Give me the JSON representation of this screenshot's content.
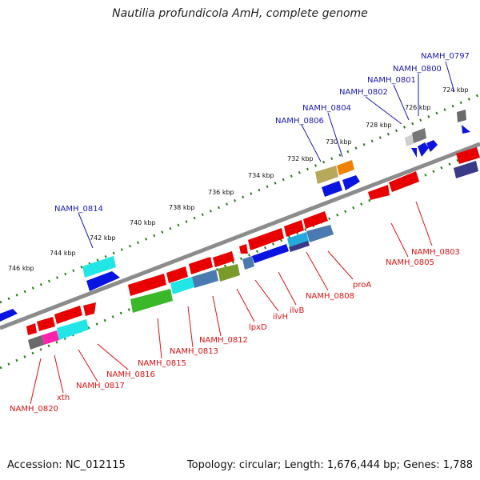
{
  "title": "Nautilia profundicola AmH, complete genome",
  "footer": {
    "accession": "Accession: NC_012115",
    "summary": "Topology: circular; Length: 1,676,444 bp; Genes: 1,788"
  },
  "colors": {
    "backbone": "#8c8c8c",
    "ticks": "#2a7a1a",
    "forward_label": "#1a1ab5",
    "reverse_label": "#dd1111"
  },
  "kbp_labels": [
    "724 kbp",
    "726 kbp",
    "728 kbp",
    "730 kbp",
    "732 kbp",
    "734 kbp",
    "736 kbp",
    "738 kbp",
    "740 kbp",
    "742 kbp",
    "744 kbp",
    "746 kbp"
  ],
  "forward_labels": [
    "NAMH_0797",
    "NAMH_0800",
    "NAMH_0801",
    "NAMH_0802",
    "NAMH_0804",
    "NAMH_0806",
    "NAMH_0814"
  ],
  "reverse_labels": [
    "NAMH_0803",
    "NAMH_0805",
    "proA",
    "NAMH_0808",
    "ilvB",
    "ilvH",
    "lpxD",
    "NAMH_0812",
    "NAMH_0813",
    "NAMH_0815",
    "NAMH_0816",
    "NAMH_0817",
    "xth",
    "NAMH_0820"
  ]
}
